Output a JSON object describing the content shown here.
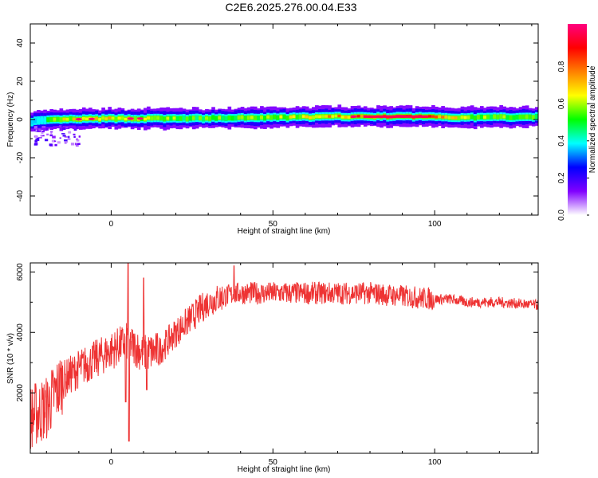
{
  "title": "C2E6.2025.276.00.04.E33",
  "chart_data": [
    {
      "type": "heatmap",
      "xlabel": "Height of straight line (km)",
      "ylabel": "Frequency (Hz)",
      "xlim": [
        -25,
        132
      ],
      "ylim": [
        -50,
        50
      ],
      "xticks": [
        0,
        50,
        100
      ],
      "yticks": [
        -40,
        -20,
        0,
        20,
        40
      ],
      "ridge": {
        "x": [
          -25,
          -15,
          0,
          25,
          50,
          70,
          90,
          100,
          110,
          132
        ],
        "freq_hz": [
          -1,
          0,
          0.5,
          0.5,
          1,
          1.5,
          1.5,
          1.5,
          1,
          1.5
        ],
        "amplitude": [
          0.3,
          0.6,
          0.65,
          0.5,
          0.55,
          0.7,
          0.95,
          0.8,
          0.55,
          0.5
        ]
      },
      "hot_spots_x": [
        -10,
        -6,
        6,
        9,
        75,
        80,
        85,
        90,
        95
      ],
      "colorbar": {
        "label": "Normalized spectral amplitude",
        "ticks": [
          0.0,
          0.2,
          0.4,
          0.6,
          0.8
        ],
        "colors": [
          "#ffffff",
          "#8000ff",
          "#0000ff",
          "#00ffff",
          "#00ff00",
          "#ffff00",
          "#ff8000",
          "#ff0000",
          "#ff0080"
        ]
      }
    },
    {
      "type": "line",
      "xlabel": "Height of straight line (km)",
      "ylabel": "SNR (10 * v/v)",
      "xlim": [
        -25,
        132
      ],
      "ylim": [
        0,
        6300
      ],
      "xticks": [
        0,
        50,
        100
      ],
      "yticks": [
        2000,
        4000,
        6000
      ],
      "color": "#ee3333",
      "trend": {
        "x": [
          -25,
          -20,
          -15,
          -10,
          -5,
          0,
          5,
          10,
          15,
          20,
          25,
          30,
          35,
          40,
          50,
          60,
          70,
          80,
          90,
          100,
          105,
          110,
          120,
          132
        ],
        "y": [
          1200,
          1500,
          2400,
          2800,
          3100,
          3400,
          3700,
          3300,
          3400,
          4000,
          4500,
          5000,
          5200,
          5300,
          5300,
          5300,
          5300,
          5300,
          5200,
          5100,
          5100,
          5000,
          5000,
          4900
        ]
      },
      "spikes": [
        {
          "x": 5.2,
          "y": 6300
        },
        {
          "x": 5.5,
          "y": 400
        },
        {
          "x": 4.5,
          "y": 1700
        },
        {
          "x": 11,
          "y": 2100
        },
        {
          "x": 10,
          "y": 5800
        },
        {
          "x": 38,
          "y": 6200
        }
      ]
    }
  ]
}
